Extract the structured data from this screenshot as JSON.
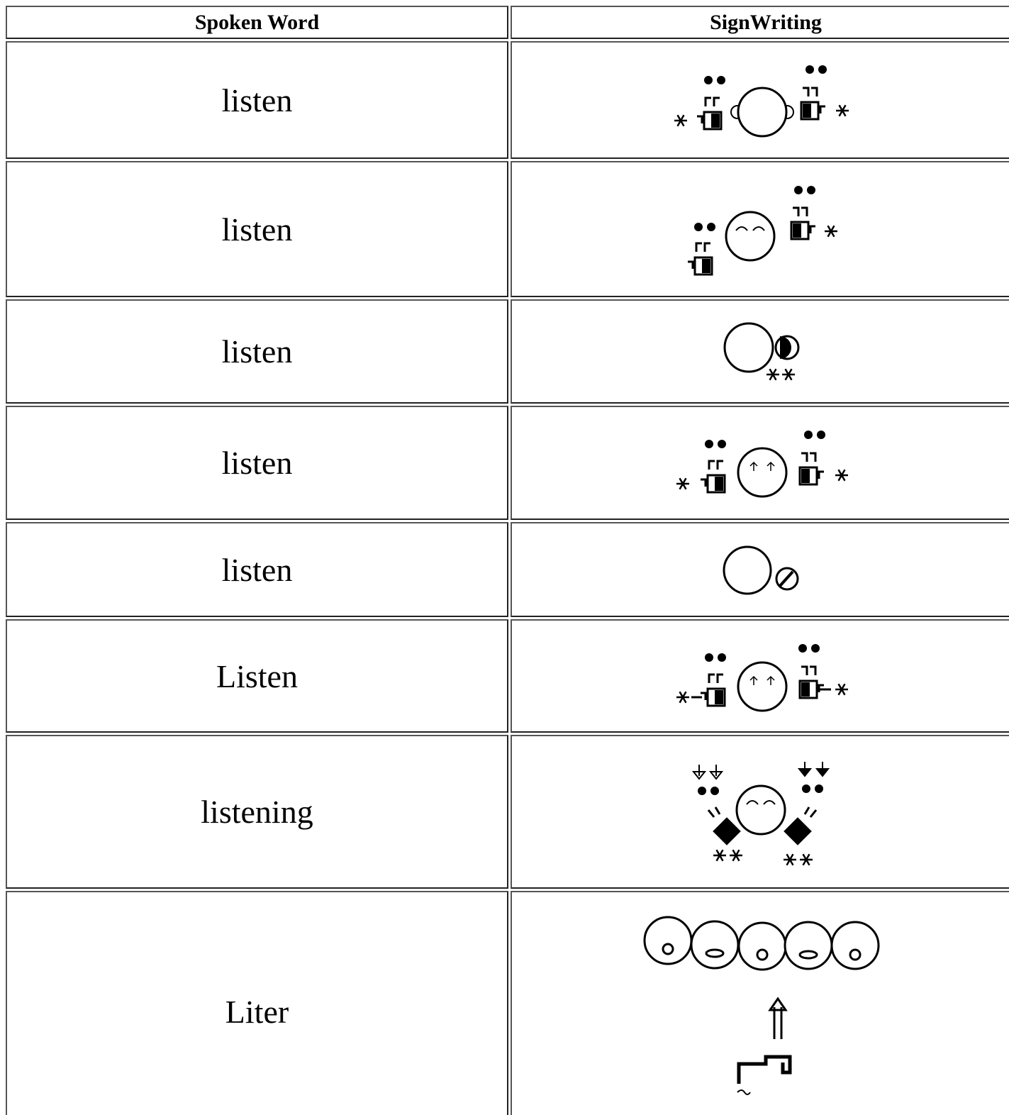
{
  "table": {
    "header": [
      "Spoken Word",
      "SignWriting"
    ],
    "rows": [
      "listen",
      "listen",
      "listen",
      "listen",
      "listen",
      "Listen",
      "listening",
      "Liter"
    ]
  }
}
